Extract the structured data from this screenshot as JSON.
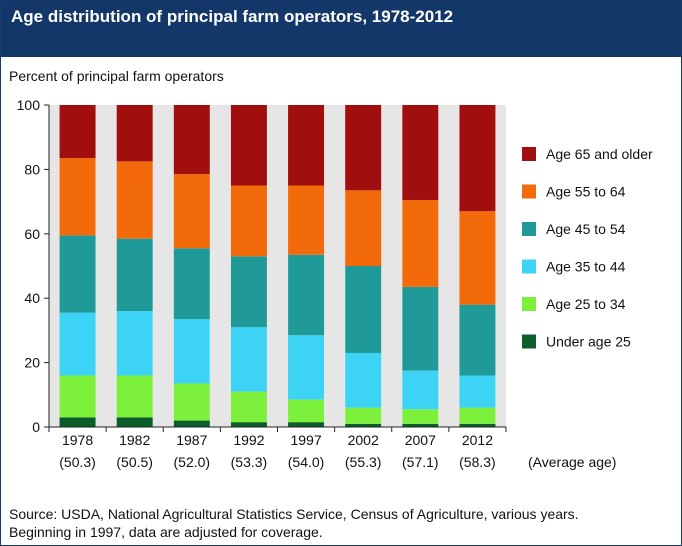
{
  "header": {
    "title": "Age distribution of principal farm operators, 1978-2012"
  },
  "chart_data": {
    "type": "bar",
    "stacked": true,
    "ylabel": "Percent of principal farm operators",
    "ylim": [
      0,
      100
    ],
    "yticks": [
      0,
      20,
      40,
      60,
      80,
      100
    ],
    "categories": [
      "1978",
      "1982",
      "1987",
      "1992",
      "1997",
      "2002",
      "2007",
      "2012"
    ],
    "category_sublabels": [
      "(50.3)",
      "(50.5)",
      "(52.0)",
      "(53.3)",
      "(54.0)",
      "(55.3)",
      "(57.1)",
      "(58.3)"
    ],
    "sublabel_note": "(Average age)",
    "legend_position": "right",
    "series": [
      {
        "name": "Under age 25",
        "color": "#0b5e2a",
        "values": [
          3,
          3,
          2,
          1.5,
          1.5,
          1,
          1,
          1
        ]
      },
      {
        "name": "Age 25 to 34",
        "color": "#7df03c",
        "values": [
          13,
          13,
          11.5,
          9.5,
          7,
          5,
          4.5,
          5
        ]
      },
      {
        "name": "Age 35 to 44",
        "color": "#3cd3f5",
        "values": [
          19.5,
          20,
          20,
          20,
          20,
          17,
          12,
          10
        ]
      },
      {
        "name": "Age 45 to 54",
        "color": "#1f9a98",
        "values": [
          24,
          22.5,
          22,
          22,
          25,
          27,
          26,
          22
        ]
      },
      {
        "name": "Age 55 to 64",
        "color": "#f26a0a",
        "values": [
          24,
          24,
          23,
          22,
          21.5,
          23.5,
          27,
          29
        ]
      },
      {
        "name": "Age 65 and older",
        "color": "#a00e0e",
        "values": [
          16.5,
          17.5,
          21.5,
          25,
          25,
          26.5,
          29.5,
          33
        ]
      }
    ]
  },
  "footer": {
    "source_line1": "Source: USDA, National Agricultural Statistics Service, Census of Agriculture, various years.",
    "source_line2": "Beginning in 1997, data are adjusted for coverage."
  }
}
